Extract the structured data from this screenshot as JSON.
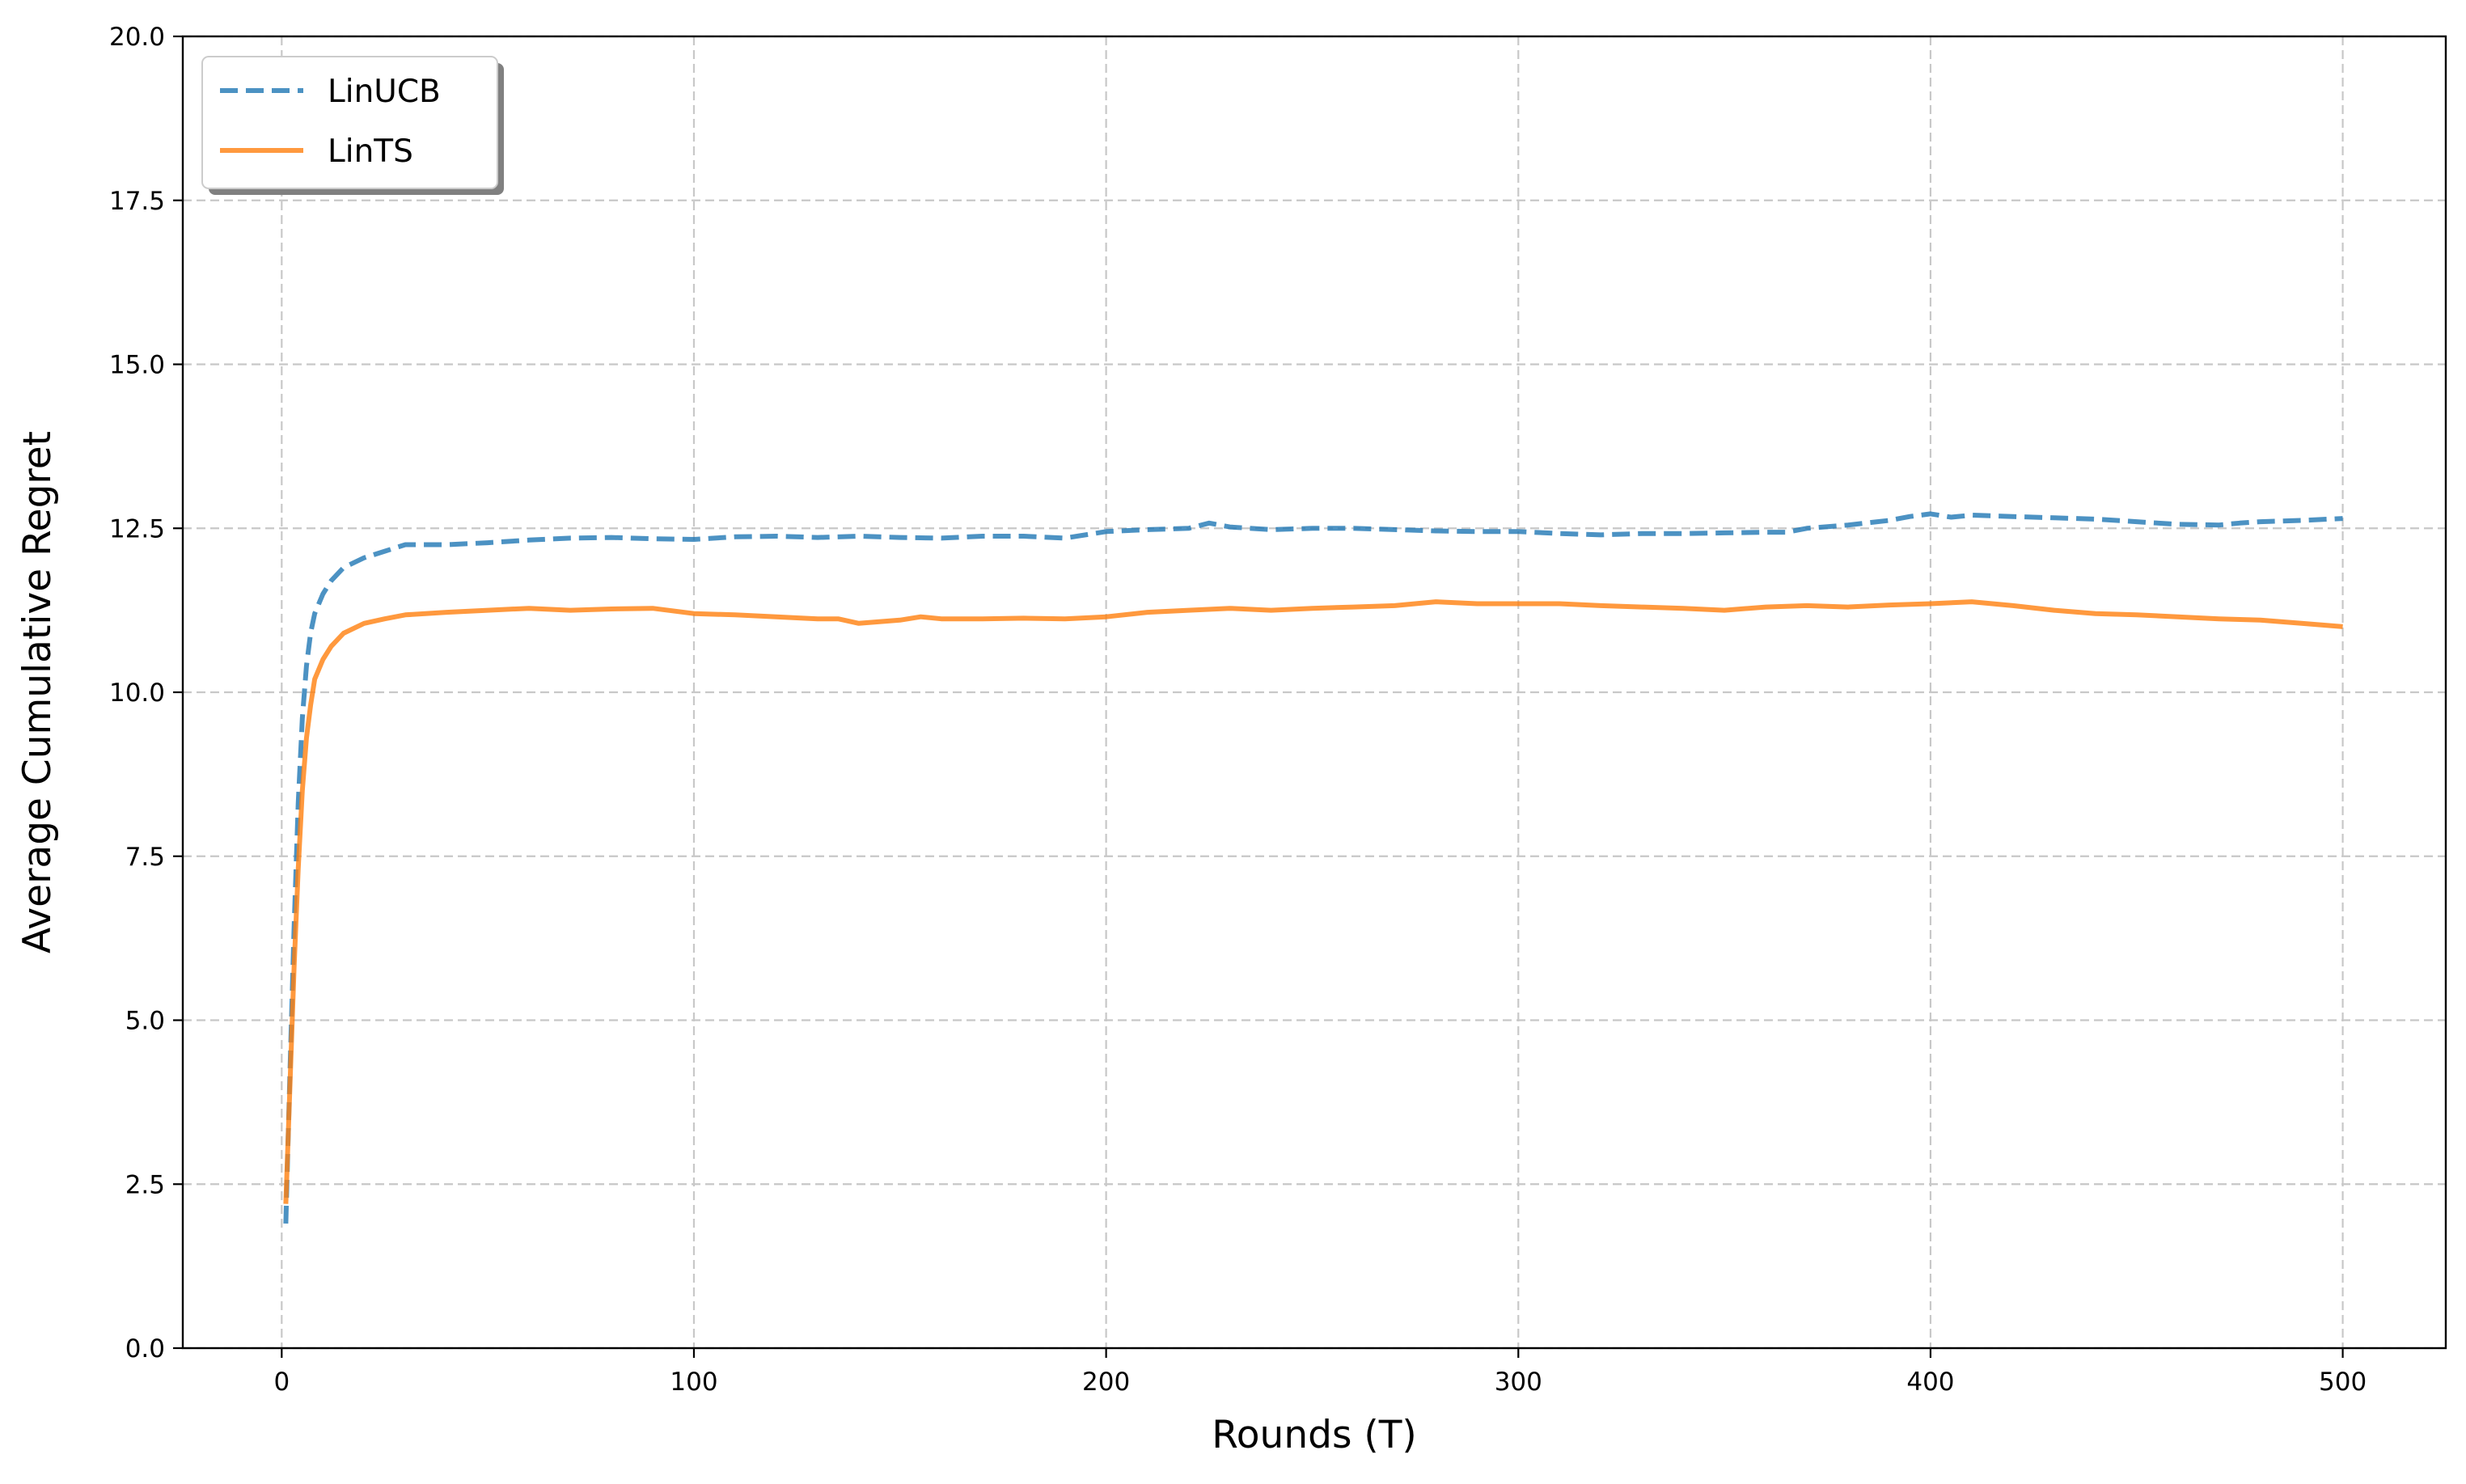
{
  "chart_data": {
    "type": "line",
    "title": "",
    "xlabel": "Rounds (T)",
    "ylabel": "Average Cumulative Regret",
    "xlim": [
      -24,
      525
    ],
    "ylim": [
      0,
      20
    ],
    "xticks": [
      0,
      100,
      200,
      300,
      400,
      500
    ],
    "yticks": [
      0.0,
      2.5,
      5.0,
      7.5,
      10.0,
      12.5,
      15.0,
      17.5,
      20.0
    ],
    "xtick_labels": [
      "0",
      "100",
      "200",
      "300",
      "400",
      "500"
    ],
    "ytick_labels": [
      "0.0",
      "2.5",
      "5.0",
      "7.5",
      "10.0",
      "12.5",
      "15.0",
      "17.5",
      "20.0"
    ],
    "grid": true,
    "legend_position": "top-left",
    "series": [
      {
        "name": "LinUCB",
        "color": "#1f77b4",
        "style": "dashed",
        "x": [
          1,
          2,
          3,
          4,
          5,
          6,
          7,
          8,
          10,
          12,
          15,
          20,
          25,
          30,
          40,
          50,
          60,
          70,
          80,
          90,
          100,
          110,
          120,
          130,
          140,
          150,
          160,
          170,
          180,
          190,
          200,
          210,
          220,
          225,
          230,
          240,
          250,
          260,
          270,
          280,
          290,
          300,
          310,
          320,
          330,
          340,
          350,
          360,
          365,
          370,
          380,
          390,
          395,
          400,
          405,
          410,
          420,
          430,
          440,
          450,
          460,
          470,
          475,
          480,
          490,
          500
        ],
        "y": [
          1.9,
          4.2,
          6.4,
          8.3,
          9.6,
          10.4,
          10.9,
          11.2,
          11.5,
          11.7,
          11.9,
          12.05,
          12.15,
          12.25,
          12.25,
          12.28,
          12.32,
          12.35,
          12.36,
          12.34,
          12.33,
          12.37,
          12.38,
          12.36,
          12.38,
          12.36,
          12.35,
          12.38,
          12.38,
          12.35,
          12.45,
          12.48,
          12.5,
          12.58,
          12.52,
          12.48,
          12.5,
          12.5,
          12.48,
          12.46,
          12.45,
          12.45,
          12.42,
          12.4,
          12.42,
          12.42,
          12.43,
          12.44,
          12.44,
          12.5,
          12.55,
          12.62,
          12.68,
          12.72,
          12.67,
          12.7,
          12.68,
          12.66,
          12.64,
          12.6,
          12.56,
          12.55,
          12.58,
          12.6,
          12.62,
          12.65
        ]
      },
      {
        "name": "LinTS",
        "color": "#ff7f0e",
        "style": "solid",
        "x": [
          1,
          2,
          3,
          4,
          5,
          6,
          7,
          8,
          10,
          12,
          15,
          20,
          25,
          30,
          40,
          50,
          60,
          70,
          80,
          90,
          100,
          110,
          120,
          130,
          135,
          140,
          150,
          155,
          160,
          170,
          180,
          190,
          200,
          210,
          220,
          230,
          240,
          250,
          260,
          270,
          280,
          290,
          300,
          310,
          320,
          330,
          340,
          350,
          360,
          370,
          380,
          390,
          400,
          410,
          420,
          430,
          440,
          450,
          460,
          470,
          480,
          490,
          500
        ],
        "y": [
          2.2,
          4.0,
          5.8,
          7.3,
          8.5,
          9.3,
          9.8,
          10.2,
          10.5,
          10.7,
          10.9,
          11.05,
          11.12,
          11.18,
          11.22,
          11.25,
          11.28,
          11.25,
          11.27,
          11.28,
          11.2,
          11.18,
          11.15,
          11.12,
          11.12,
          11.05,
          11.1,
          11.15,
          11.12,
          11.12,
          11.13,
          11.12,
          11.15,
          11.22,
          11.25,
          11.28,
          11.25,
          11.28,
          11.3,
          11.32,
          11.38,
          11.35,
          11.35,
          11.35,
          11.32,
          11.3,
          11.28,
          11.25,
          11.3,
          11.32,
          11.3,
          11.33,
          11.35,
          11.38,
          11.32,
          11.25,
          11.2,
          11.18,
          11.15,
          11.12,
          11.1,
          11.05,
          11.0
        ]
      }
    ]
  }
}
